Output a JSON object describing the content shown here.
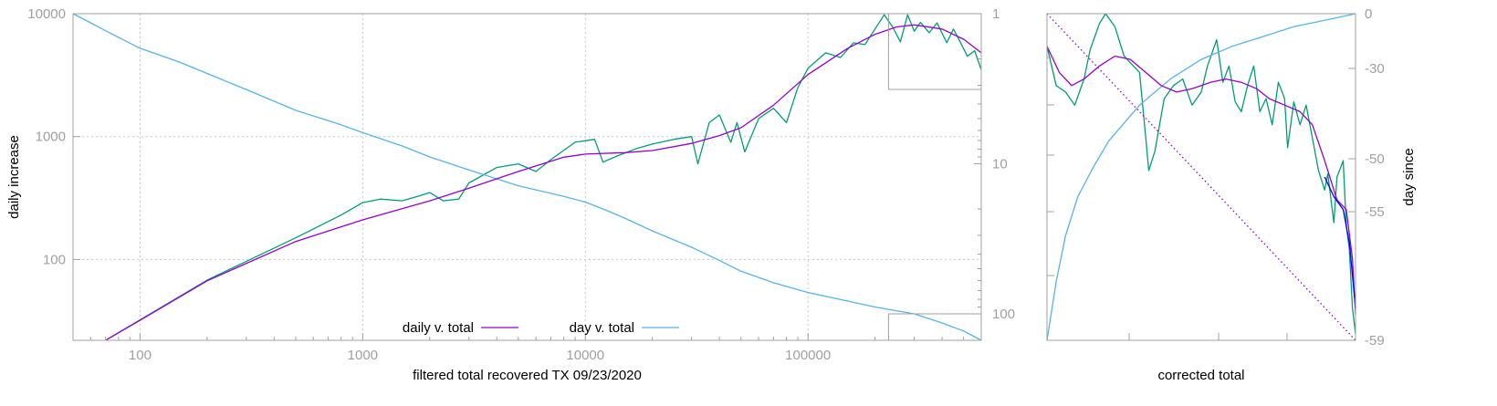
{
  "colors": {
    "daily": "#9400d3",
    "green": "#009e73",
    "day": "#56b4e9",
    "frame": "#a0a0a0",
    "grid": "#c8c8c8",
    "text": "#000000",
    "tick_text": "#a0a0a0",
    "blue_overlay": "#0000ff"
  },
  "chart_data": [
    {
      "type": "line",
      "xlabel": "filtered total recovered TX 09/23/2020",
      "ylabel": "daily increase",
      "x_scale": "log",
      "y_scale": "log",
      "y2_scale": "log",
      "y2_reversed": true,
      "xlim": [
        50,
        600000
      ],
      "ylim": [
        22,
        10000
      ],
      "y2lim": [
        1,
        150
      ],
      "x_ticks": [
        100,
        1000,
        10000,
        100000
      ],
      "x_tick_labels": [
        "100",
        "1000",
        "10000",
        "100000"
      ],
      "y_ticks": [
        100,
        1000,
        10000
      ],
      "y_tick_labels": [
        "100",
        "1000",
        "10000"
      ],
      "y2_ticks": [
        1,
        10,
        100
      ],
      "y2_tick_labels": [
        "1",
        "10",
        "100"
      ],
      "grid": true,
      "legend_position": "bottom-center",
      "legend": [
        "daily v. total",
        "day v. total"
      ],
      "series": [
        {
          "name": "daily v. total",
          "color_key": "daily",
          "axis": "left",
          "points": [
            [
              70,
              22
            ],
            [
              100,
              32
            ],
            [
              200,
              67
            ],
            [
              500,
              140
            ],
            [
              1000,
              210
            ],
            [
              2000,
              300
            ],
            [
              3000,
              380
            ],
            [
              5000,
              520
            ],
            [
              8000,
              680
            ],
            [
              10000,
              720
            ],
            [
              15000,
              740
            ],
            [
              20000,
              770
            ],
            [
              30000,
              880
            ],
            [
              40000,
              1020
            ],
            [
              50000,
              1180
            ],
            [
              70000,
              1800
            ],
            [
              100000,
              3200
            ],
            [
              150000,
              5200
            ],
            [
              200000,
              6800
            ],
            [
              250000,
              7800
            ],
            [
              300000,
              8100
            ],
            [
              400000,
              7500
            ],
            [
              500000,
              6200
            ],
            [
              600000,
              4800
            ]
          ]
        },
        {
          "color_key": "green",
          "axis": "left",
          "points": [
            [
              70,
              22
            ],
            [
              200,
              68
            ],
            [
              500,
              150
            ],
            [
              800,
              230
            ],
            [
              1000,
              290
            ],
            [
              1200,
              310
            ],
            [
              1500,
              300
            ],
            [
              1800,
              330
            ],
            [
              2000,
              350
            ],
            [
              2300,
              300
            ],
            [
              2700,
              310
            ],
            [
              3000,
              420
            ],
            [
              4000,
              560
            ],
            [
              5000,
              600
            ],
            [
              6000,
              520
            ],
            [
              7000,
              650
            ],
            [
              9000,
              900
            ],
            [
              11000,
              950
            ],
            [
              12000,
              620
            ],
            [
              14000,
              700
            ],
            [
              17000,
              800
            ],
            [
              20000,
              870
            ],
            [
              25000,
              950
            ],
            [
              30000,
              1000
            ],
            [
              32000,
              600
            ],
            [
              36000,
              1300
            ],
            [
              40000,
              1500
            ],
            [
              45000,
              900
            ],
            [
              48000,
              1300
            ],
            [
              52000,
              750
            ],
            [
              60000,
              1400
            ],
            [
              70000,
              1700
            ],
            [
              80000,
              1300
            ],
            [
              90000,
              2500
            ],
            [
              100000,
              3600
            ],
            [
              120000,
              4800
            ],
            [
              140000,
              4400
            ],
            [
              160000,
              5800
            ],
            [
              180000,
              5600
            ],
            [
              200000,
              7500
            ],
            [
              220000,
              9800
            ],
            [
              240000,
              7800
            ],
            [
              260000,
              5900
            ],
            [
              280000,
              9800
            ],
            [
              300000,
              7200
            ],
            [
              320000,
              8500
            ],
            [
              350000,
              7000
            ],
            [
              380000,
              8400
            ],
            [
              420000,
              5800
            ],
            [
              450000,
              7500
            ],
            [
              480000,
              6000
            ],
            [
              520000,
              4500
            ],
            [
              560000,
              5000
            ],
            [
              600000,
              3500
            ]
          ]
        },
        {
          "name": "day v. total",
          "color_key": "day",
          "axis": "right",
          "points": [
            [
              50,
              1
            ],
            [
              60,
              1.15
            ],
            [
              70,
              1.3
            ],
            [
              100,
              1.7
            ],
            [
              150,
              2.1
            ],
            [
              200,
              2.5
            ],
            [
              300,
              3.2
            ],
            [
              500,
              4.4
            ],
            [
              800,
              5.5
            ],
            [
              1000,
              6.2
            ],
            [
              1500,
              7.6
            ],
            [
              2000,
              9
            ],
            [
              3000,
              11
            ],
            [
              5000,
              14
            ],
            [
              8000,
              16.5
            ],
            [
              10000,
              18
            ],
            [
              12000,
              20
            ],
            [
              15000,
              23
            ],
            [
              20000,
              28
            ],
            [
              30000,
              36
            ],
            [
              40000,
              44
            ],
            [
              50000,
              52
            ],
            [
              70000,
              62
            ],
            [
              100000,
              72
            ],
            [
              150000,
              82
            ],
            [
              200000,
              90
            ],
            [
              300000,
              100
            ],
            [
              400000,
              115
            ],
            [
              500000,
              130
            ],
            [
              600000,
              150
            ]
          ]
        }
      ]
    },
    {
      "type": "line",
      "xlabel": "corrected total",
      "ylabel": "day since",
      "y2_ticks": [
        0,
        -30,
        -50,
        -55,
        -59
      ],
      "y2_tick_labels": [
        "0",
        "-30",
        "-50",
        "-55",
        "-59"
      ],
      "series": [
        {
          "color_key": "daily",
          "points": [
            [
              0.0,
              0.9
            ],
            [
              0.04,
              0.82
            ],
            [
              0.08,
              0.78
            ],
            [
              0.12,
              0.8
            ],
            [
              0.17,
              0.84
            ],
            [
              0.22,
              0.87
            ],
            [
              0.27,
              0.86
            ],
            [
              0.32,
              0.82
            ],
            [
              0.37,
              0.78
            ],
            [
              0.42,
              0.76
            ],
            [
              0.47,
              0.77
            ],
            [
              0.53,
              0.79
            ],
            [
              0.58,
              0.8
            ],
            [
              0.63,
              0.79
            ],
            [
              0.68,
              0.77
            ],
            [
              0.72,
              0.74
            ],
            [
              0.77,
              0.72
            ],
            [
              0.82,
              0.7
            ],
            [
              0.86,
              0.66
            ],
            [
              0.9,
              0.55
            ],
            [
              0.94,
              0.43
            ],
            [
              0.97,
              0.4
            ],
            [
              0.99,
              0.25
            ],
            [
              1.0,
              0.08
            ]
          ]
        },
        {
          "color_key": "green",
          "points": [
            [
              0.0,
              0.9
            ],
            [
              0.03,
              0.78
            ],
            [
              0.06,
              0.76
            ],
            [
              0.09,
              0.72
            ],
            [
              0.12,
              0.8
            ],
            [
              0.14,
              0.89
            ],
            [
              0.17,
              0.97
            ],
            [
              0.19,
              1.0
            ],
            [
              0.22,
              0.96
            ],
            [
              0.25,
              0.87
            ],
            [
              0.28,
              0.84
            ],
            [
              0.3,
              0.82
            ],
            [
              0.32,
              0.62
            ],
            [
              0.33,
              0.52
            ],
            [
              0.35,
              0.58
            ],
            [
              0.38,
              0.74
            ],
            [
              0.41,
              0.78
            ],
            [
              0.44,
              0.8
            ],
            [
              0.47,
              0.72
            ],
            [
              0.5,
              0.76
            ],
            [
              0.52,
              0.84
            ],
            [
              0.55,
              0.92
            ],
            [
              0.57,
              0.79
            ],
            [
              0.59,
              0.84
            ],
            [
              0.61,
              0.73
            ],
            [
              0.63,
              0.7
            ],
            [
              0.65,
              0.78
            ],
            [
              0.67,
              0.84
            ],
            [
              0.69,
              0.7
            ],
            [
              0.71,
              0.74
            ],
            [
              0.73,
              0.66
            ],
            [
              0.75,
              0.79
            ],
            [
              0.77,
              0.74
            ],
            [
              0.78,
              0.59
            ],
            [
              0.8,
              0.73
            ],
            [
              0.82,
              0.66
            ],
            [
              0.84,
              0.72
            ],
            [
              0.86,
              0.62
            ],
            [
              0.88,
              0.52
            ],
            [
              0.9,
              0.46
            ],
            [
              0.91,
              0.51
            ],
            [
              0.93,
              0.36
            ],
            [
              0.94,
              0.5
            ],
            [
              0.96,
              0.55
            ],
            [
              0.97,
              0.35
            ],
            [
              0.98,
              0.28
            ],
            [
              0.99,
              0.1
            ],
            [
              1.0,
              0.02
            ]
          ]
        },
        {
          "color_key": "day",
          "points": [
            [
              0.0,
              0.0
            ],
            [
              0.03,
              0.18
            ],
            [
              0.06,
              0.32
            ],
            [
              0.1,
              0.44
            ],
            [
              0.15,
              0.53
            ],
            [
              0.2,
              0.61
            ],
            [
              0.3,
              0.72
            ],
            [
              0.4,
              0.8
            ],
            [
              0.5,
              0.86
            ],
            [
              0.6,
              0.9
            ],
            [
              0.7,
              0.93
            ],
            [
              0.8,
              0.96
            ],
            [
              0.9,
              0.98
            ],
            [
              1.0,
              1.0
            ]
          ]
        },
        {
          "color_key": "daily",
          "style": "dotted",
          "points": [
            [
              0.0,
              1.0
            ],
            [
              1.0,
              0.0
            ]
          ]
        },
        {
          "color_key": "blue_overlay",
          "points": [
            [
              0.9,
              0.5
            ],
            [
              0.93,
              0.44
            ],
            [
              0.96,
              0.4
            ],
            [
              0.98,
              0.3
            ],
            [
              1.0,
              0.1
            ]
          ]
        }
      ]
    }
  ]
}
